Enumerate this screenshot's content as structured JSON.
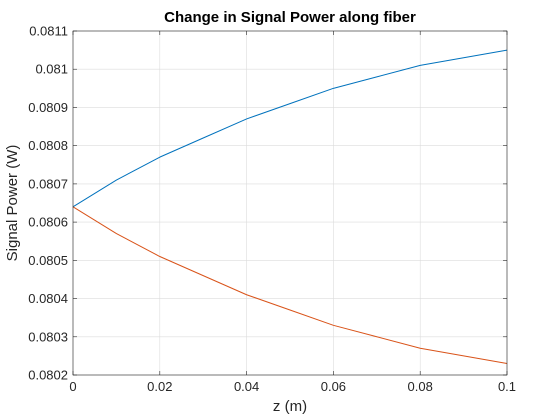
{
  "chart_data": {
    "type": "line",
    "title": "Change in Signal Power along fiber",
    "xlabel": "z (m)",
    "ylabel": "Signal Power (W)",
    "xlim": [
      0,
      0.1
    ],
    "ylim": [
      0.0802,
      0.0811
    ],
    "xticks": [
      0,
      0.02,
      0.04,
      0.06,
      0.08,
      0.1
    ],
    "xtick_labels": [
      "0",
      "0.02",
      "0.04",
      "0.06",
      "0.08",
      "0.1"
    ],
    "yticks": [
      0.0802,
      0.0803,
      0.0804,
      0.0805,
      0.0806,
      0.0807,
      0.0808,
      0.0809,
      0.081,
      0.0811
    ],
    "ytick_labels": [
      "0.0802",
      "0.0803",
      "0.0804",
      "0.0805",
      "0.0806",
      "0.0807",
      "0.0808",
      "0.0809",
      "0.081",
      "0.0811"
    ],
    "grid": true,
    "x": [
      0,
      0.01,
      0.02,
      0.03,
      0.04,
      0.05,
      0.06,
      0.07,
      0.08,
      0.09,
      0.1
    ],
    "series": [
      {
        "color": "#0072bd",
        "values": [
          0.08064,
          0.08071,
          0.08077,
          0.08082,
          0.08087,
          0.08091,
          0.08095,
          0.08098,
          0.08101,
          0.08103,
          0.08105
        ]
      },
      {
        "color": "#d95319",
        "values": [
          0.08064,
          0.08057,
          0.08051,
          0.08046,
          0.08041,
          0.08037,
          0.08033,
          0.0803,
          0.08027,
          0.08025,
          0.08023
        ]
      }
    ]
  }
}
